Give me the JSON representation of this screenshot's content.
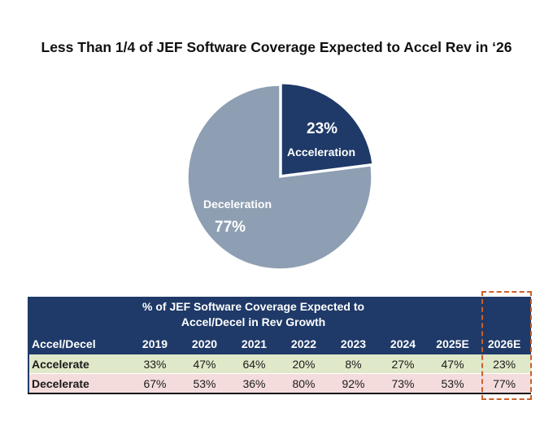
{
  "title": "Less Than 1/4 of JEF Software Coverage Expected to Accel Rev in ‘26",
  "chart_data": [
    {
      "type": "pie",
      "title": "Less Than 1/4 of JEF Software Coverage Expected to Accel Rev in ‘26",
      "slices": [
        {
          "label": "Acceleration",
          "value": 23,
          "display": "23%",
          "color": "#1f3a68"
        },
        {
          "label": "Deceleration",
          "value": 77,
          "display": "77%",
          "color": "#8e9fb3"
        }
      ]
    },
    {
      "type": "table",
      "title": "% of JEF Software Coverage Expected to Accel/Decel in Rev Growth",
      "title_line1": "% of JEF Software Coverage Expected to",
      "title_line2": "Accel/Decel in Rev Growth",
      "row_header": "Accel/Decel",
      "columns": [
        "2019",
        "2020",
        "2021",
        "2022",
        "2023",
        "2024",
        "2025E",
        "2026E"
      ],
      "rows": [
        {
          "label": "Accelerate",
          "values": [
            "33%",
            "47%",
            "64%",
            "20%",
            "8%",
            "27%",
            "47%",
            "23%"
          ]
        },
        {
          "label": "Decelerate",
          "values": [
            "67%",
            "53%",
            "36%",
            "80%",
            "92%",
            "73%",
            "53%",
            "77%"
          ]
        }
      ],
      "highlighted_column": "2026E"
    }
  ],
  "colors": {
    "accel": "#1f3a68",
    "decel": "#8e9fb3",
    "header_bg": "#1f3a68",
    "accel_row_bg": "#dfe8c8",
    "decel_row_bg": "#f5dcdc",
    "highlight_border": "#c9602a"
  }
}
